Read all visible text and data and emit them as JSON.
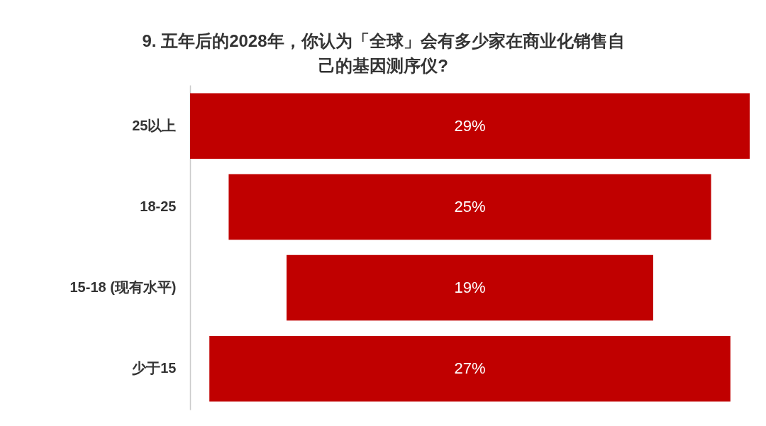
{
  "chart_data": {
    "type": "other",
    "title": "9. 五年后的2028年，你认为「全球」会有多少家在商业化销售自己的基因测序仪?",
    "categories": [
      "25以上",
      "18-25",
      "15-18 (现有水平)",
      "少于15"
    ],
    "values": [
      29,
      25,
      19,
      27
    ],
    "value_labels": [
      "29%",
      "25%",
      "19%",
      "27%"
    ],
    "color": "#c00000"
  }
}
